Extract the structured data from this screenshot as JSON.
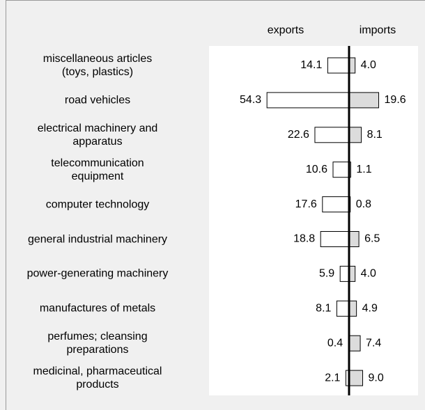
{
  "chart_data": {
    "type": "butterfly",
    "categories": [
      "miscellaneous articles\n(toys, plastics)",
      "road vehicles",
      "electrical machinery and\napparatus",
      "telecommunication\nequipment",
      "computer technology",
      "general industrial machinery",
      "power-generating machinery",
      "manufactures of metals",
      "perfumes; cleansing\npreparations",
      "medicinal, pharmaceutical\nproducts"
    ],
    "series": [
      {
        "name": "exports",
        "color": "#ffffff",
        "values": [
          14.1,
          54.3,
          22.6,
          10.6,
          17.6,
          18.8,
          5.9,
          8.1,
          0.4,
          2.1
        ],
        "value_labels": [
          "14.1",
          "54.3",
          "22.6",
          "10.6",
          "17.6",
          "18.8",
          "5.9",
          "8.1",
          "0.4",
          "2.1"
        ]
      },
      {
        "name": "imports",
        "color": "#dcdcdc",
        "values": [
          4.0,
          19.6,
          8.1,
          1.1,
          0.8,
          6.5,
          4.0,
          4.9,
          7.4,
          9.0
        ],
        "value_labels": [
          "4.0",
          "19.6",
          "8.1",
          "1.1",
          "0.8",
          "6.5",
          "4.0",
          "4.9",
          "7.4",
          "9.0"
        ]
      }
    ]
  }
}
